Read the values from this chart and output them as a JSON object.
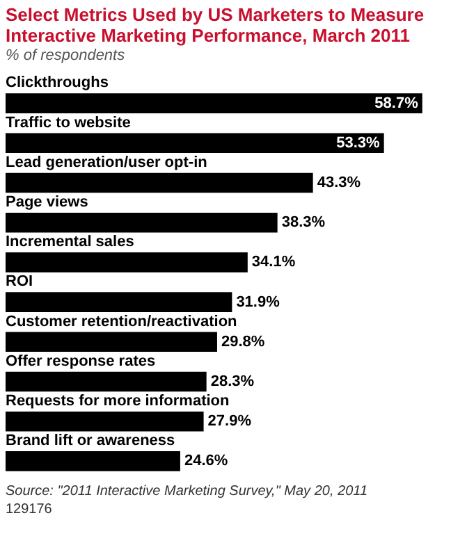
{
  "chart_data": {
    "type": "bar",
    "orientation": "horizontal",
    "title": "Select Metrics Used by US Marketers to Measure Interactive Marketing Performance, March 2011",
    "subtitle": "% of respondents",
    "categories": [
      "Clickthroughs",
      "Traffic to website",
      "Lead generation/user opt-in",
      "Page views",
      "Incremental sales",
      "ROI",
      "Customer retention/reactivation",
      "Offer response rates",
      "Requests for more information",
      "Brand lift or awareness"
    ],
    "values": [
      58.7,
      53.3,
      43.3,
      38.3,
      34.1,
      31.9,
      29.8,
      28.3,
      27.9,
      24.6
    ],
    "value_labels": [
      "58.7%",
      "53.3%",
      "43.3%",
      "38.3%",
      "34.1%",
      "31.9%",
      "29.8%",
      "28.3%",
      "27.9%",
      "24.6%"
    ],
    "color": "#000000",
    "annotations": [
      "Source: \"2011 Interactive Marketing Survey,\" May 20, 2011",
      "129176"
    ]
  }
}
